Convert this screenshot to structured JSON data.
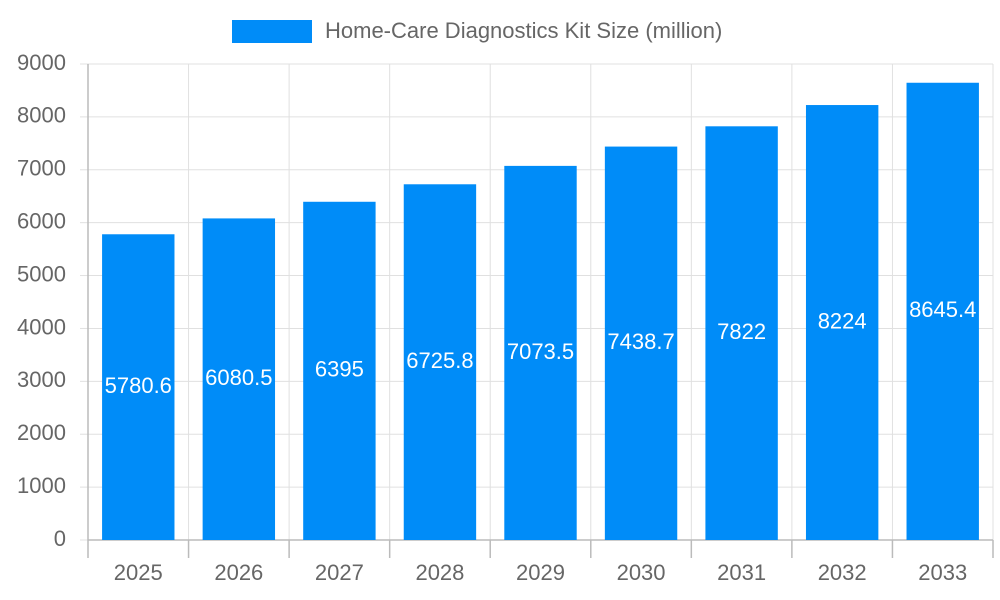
{
  "chart_data": {
    "type": "bar",
    "categories": [
      "2025",
      "2026",
      "2027",
      "2028",
      "2029",
      "2030",
      "2031",
      "2032",
      "2033"
    ],
    "series": [
      {
        "name": "Home-Care Diagnostics Kit Size (million)",
        "color": "#008cf8",
        "values": [
          5780.6,
          6080.5,
          6395,
          6725.8,
          7073.5,
          7438.7,
          7822,
          8224,
          8645.4
        ]
      }
    ],
    "ylim": [
      0,
      9000
    ],
    "yticks": [
      0,
      1000,
      2000,
      3000,
      4000,
      5000,
      6000,
      7000,
      8000,
      9000
    ],
    "grid": true,
    "legend": "top"
  }
}
